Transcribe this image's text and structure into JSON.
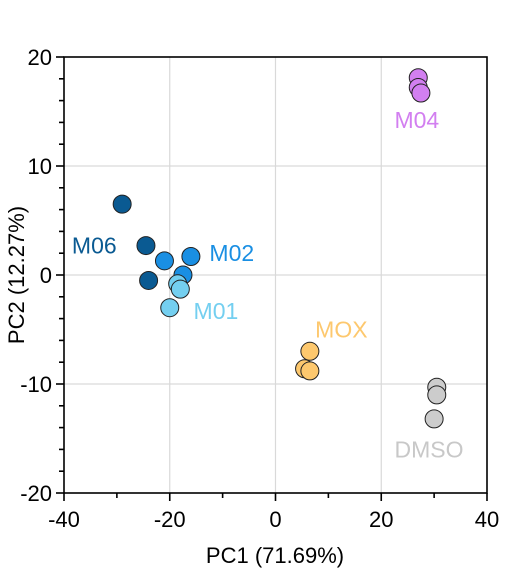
{
  "chart_data": {
    "type": "scatter",
    "title": "",
    "xlabel": "PC1 (71.69%)",
    "ylabel": "PC2 (12.27%)",
    "xlim": [
      -40,
      40
    ],
    "ylim": [
      -20,
      20
    ],
    "xticks": [
      -40,
      -20,
      0,
      20,
      40
    ],
    "yticks": [
      -20,
      -10,
      0,
      10,
      20
    ],
    "grid": true,
    "series": [
      {
        "name": "M06",
        "color": "#0a5a92",
        "points": [
          [
            -29,
            6.5
          ],
          [
            -24.5,
            2.7
          ],
          [
            -24,
            -0.5
          ]
        ]
      },
      {
        "name": "M02",
        "color": "#1a8fe3",
        "points": [
          [
            -16,
            1.7
          ],
          [
            -21,
            1.3
          ],
          [
            -17.5,
            0
          ]
        ]
      },
      {
        "name": "M01",
        "color": "#74cff0",
        "points": [
          [
            -18.5,
            -0.8
          ],
          [
            -18,
            -1.3
          ],
          [
            -20,
            -3
          ]
        ]
      },
      {
        "name": "MOX",
        "color": "#fdc86e",
        "points": [
          [
            6.5,
            -7
          ],
          [
            5.5,
            -8.6
          ],
          [
            6.5,
            -8.8
          ]
        ]
      },
      {
        "name": "DMSO",
        "color": "#cccccc",
        "points": [
          [
            30.5,
            -10.3
          ],
          [
            30.5,
            -11
          ],
          [
            30,
            -13.2
          ]
        ]
      },
      {
        "name": "M04",
        "color": "#d27ff0",
        "points": [
          [
            27,
            18.1
          ],
          [
            27,
            17.2
          ],
          [
            27.5,
            16.7
          ]
        ]
      }
    ],
    "labels": [
      {
        "text": "M06",
        "x": -38.5,
        "y": 2.7,
        "color": "#0a5a92"
      },
      {
        "text": "M02",
        "x": -12.5,
        "y": 2.0,
        "color": "#1a8fe3"
      },
      {
        "text": "M01",
        "x": -15.5,
        "y": -3.3,
        "color": "#74cff0"
      },
      {
        "text": "MOX",
        "x": 7.5,
        "y": -5.0,
        "color": "#fdc86e"
      },
      {
        "text": "DMSO",
        "x": 22.5,
        "y": -16.0,
        "color": "#c8c8c8"
      },
      {
        "text": "M04",
        "x": 22.5,
        "y": 14.2,
        "color": "#d27ff0"
      }
    ]
  }
}
